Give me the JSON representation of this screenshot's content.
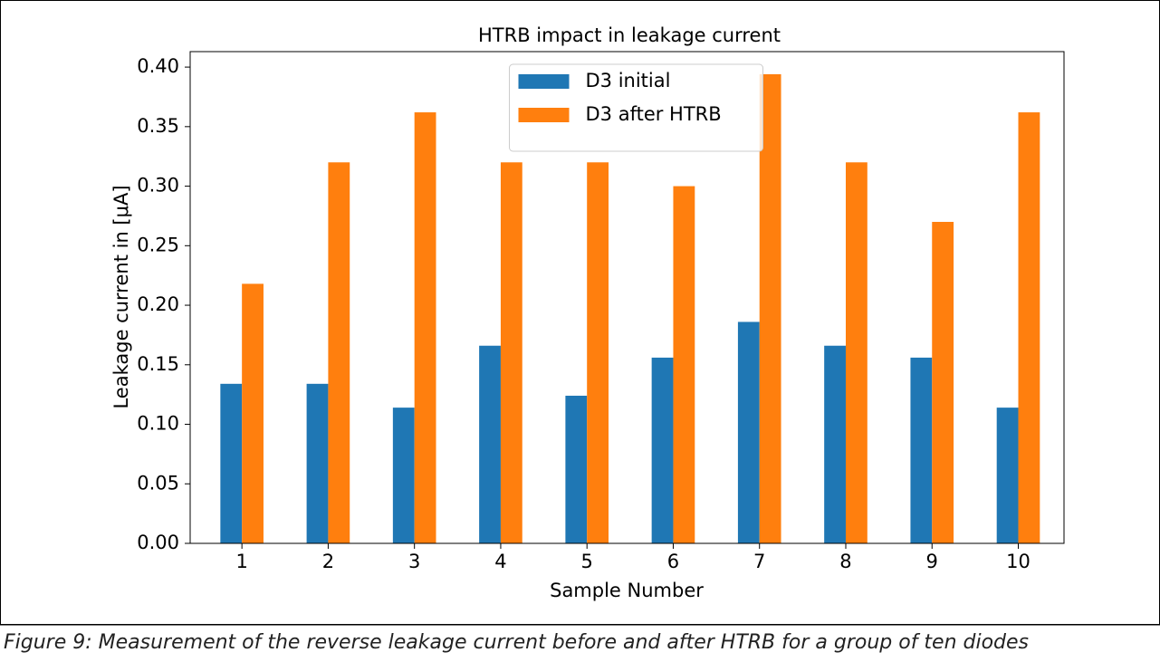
{
  "chart_data": {
    "type": "bar",
    "title": "HTRB impact in leakage current",
    "x_label": "Sample Number",
    "y_label": "Leakage current in [μA]",
    "categories": [
      "1",
      "2",
      "3",
      "4",
      "5",
      "6",
      "7",
      "8",
      "9",
      "10"
    ],
    "series": [
      {
        "name": "D3 initial",
        "color": "#1f77b4",
        "values": [
          0.134,
          0.134,
          0.114,
          0.166,
          0.124,
          0.156,
          0.186,
          0.166,
          0.156,
          0.114
        ]
      },
      {
        "name": "D3 after HTRB",
        "color": "#ff7f0e",
        "values": [
          0.218,
          0.32,
          0.362,
          0.32,
          0.32,
          0.3,
          0.394,
          0.32,
          0.27,
          0.362
        ]
      }
    ],
    "ylim": [
      0,
      0.413
    ],
    "yticks": [
      {
        "value": 0,
        "label": "0.00"
      },
      {
        "value": 0.05,
        "label": "0.05"
      },
      {
        "value": 0.1,
        "label": "0.10"
      },
      {
        "value": 0.15,
        "label": "0.15"
      },
      {
        "value": 0.2,
        "label": "0.20"
      },
      {
        "value": 0.25,
        "label": "0.25"
      },
      {
        "value": 0.3,
        "label": "0.30"
      },
      {
        "value": 0.35,
        "label": "0.35"
      },
      {
        "value": 0.4,
        "label": "0.40"
      }
    ],
    "legend": "upper center",
    "grid": false
  },
  "caption": "Figure 9: Measurement of the reverse leakage current before and after HTRB for a group of ten diodes"
}
